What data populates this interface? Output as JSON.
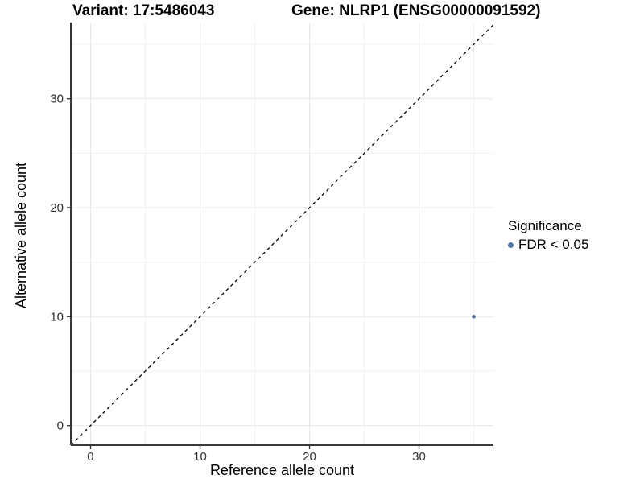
{
  "chart_data": {
    "type": "scatter",
    "title_variant": "Variant: 17:5486043",
    "title_gene": "Gene: NLRP1 (ENSG00000091592)",
    "xlabel": "Reference allele count",
    "ylabel": "Alternative allele count",
    "x_ticks": [
      0,
      10,
      20,
      30
    ],
    "y_ticks": [
      0,
      10,
      20,
      30
    ],
    "x_minor_ticks": [
      5,
      15,
      25,
      35
    ],
    "y_minor_ticks": [
      5,
      15,
      25,
      35
    ],
    "xlim": [
      -1.8,
      36.8
    ],
    "ylim": [
      -1.8,
      37.0
    ],
    "grid": true,
    "points": [
      {
        "x": 35,
        "y": 10,
        "significance": "FDR < 0.05"
      }
    ],
    "identity_line": {
      "slope": 1,
      "intercept": 0,
      "style": "dashed",
      "color": "#000000"
    },
    "legend": {
      "position": "right",
      "title": "Significance",
      "items": [
        {
          "label": "FDR < 0.05",
          "color": "#4d76a3"
        }
      ]
    },
    "colors": {
      "point": "#4d76a3",
      "grid_major": "#e8e8e8",
      "grid_minor": "#f2f2f2",
      "axis_line": "#3a3a3a",
      "tick_mark": "#333333",
      "tick_label": "#2e2e2e"
    }
  }
}
